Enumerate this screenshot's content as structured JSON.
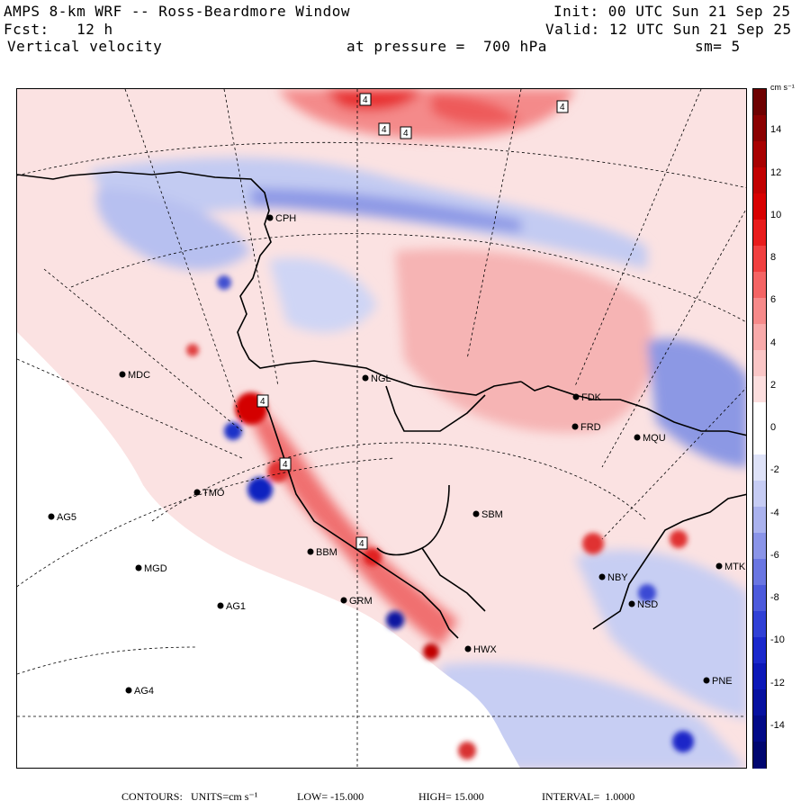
{
  "header": {
    "title": "AMPS 8-km WRF -- Ross-Beardmore Window",
    "forecast": "Fcst:   12 h",
    "field": "Vertical velocity",
    "init": "Init: 00 UTC Sun 21 Sep 25",
    "valid": "Valid: 12 UTC Sun 21 Sep 25",
    "pressure": "at pressure =  700 hPa",
    "smoothing": "sm= 5"
  },
  "footer": {
    "contours_label": "CONTOURS:",
    "units": "UNITS=cm s⁻¹",
    "low": "LOW= -15.000",
    "high": "HIGH= 15.000",
    "interval": "INTERVAL=  1.0000"
  },
  "colorbar": {
    "unit_label": "cm s⁻¹",
    "min": -16,
    "max": 16,
    "tick_labels": [
      "14",
      "12",
      "10",
      "8",
      "6",
      "4",
      "2",
      "0",
      "-2",
      "-4",
      "-6",
      "-8",
      "-10",
      "-12",
      "-14"
    ],
    "tick_values": [
      14,
      12,
      10,
      8,
      6,
      4,
      2,
      0,
      -2,
      -4,
      -6,
      -8,
      -10,
      -12,
      -14
    ],
    "colors_top_to_bottom": [
      "#6e0000",
      "#8b0000",
      "#a80000",
      "#c20000",
      "#d80000",
      "#e81c1c",
      "#f04040",
      "#f46464",
      "#f68a8a",
      "#f8aaaa",
      "#fac6c6",
      "#fcdede",
      "#ffffff",
      "#ffffff",
      "#dee2f8",
      "#c6ccf4",
      "#aab2ee",
      "#8a94e8",
      "#6a76e2",
      "#4c5adc",
      "#3040d6",
      "#1a28cc",
      "#0c18b8",
      "#0610a0",
      "#020a88",
      "#000670"
    ]
  },
  "stations": [
    {
      "id": "CPH"
    },
    {
      "id": "NGL"
    },
    {
      "id": "MDC"
    },
    {
      "id": "FDK"
    },
    {
      "id": "FRD"
    },
    {
      "id": "MQU"
    },
    {
      "id": "AG5"
    },
    {
      "id": "SBM"
    },
    {
      "id": "MGD"
    },
    {
      "id": "NBY"
    },
    {
      "id": "MTK"
    },
    {
      "id": "AG1"
    },
    {
      "id": "GRM"
    },
    {
      "id": "NSD"
    },
    {
      "id": "AG4"
    },
    {
      "id": "PNE"
    },
    {
      "id": "HWX"
    },
    {
      "id": "BBM"
    },
    {
      "id": "TMO"
    }
  ],
  "height_markers": [
    "4",
    "4",
    "4",
    "4",
    "4",
    "4",
    "4"
  ],
  "colors": {
    "positive": "#f08080",
    "negative": "#8090e0",
    "neutral_pos": "#fbe0e0",
    "neutral_neg": "#dde2f6",
    "land_mask": "#ffffff"
  }
}
